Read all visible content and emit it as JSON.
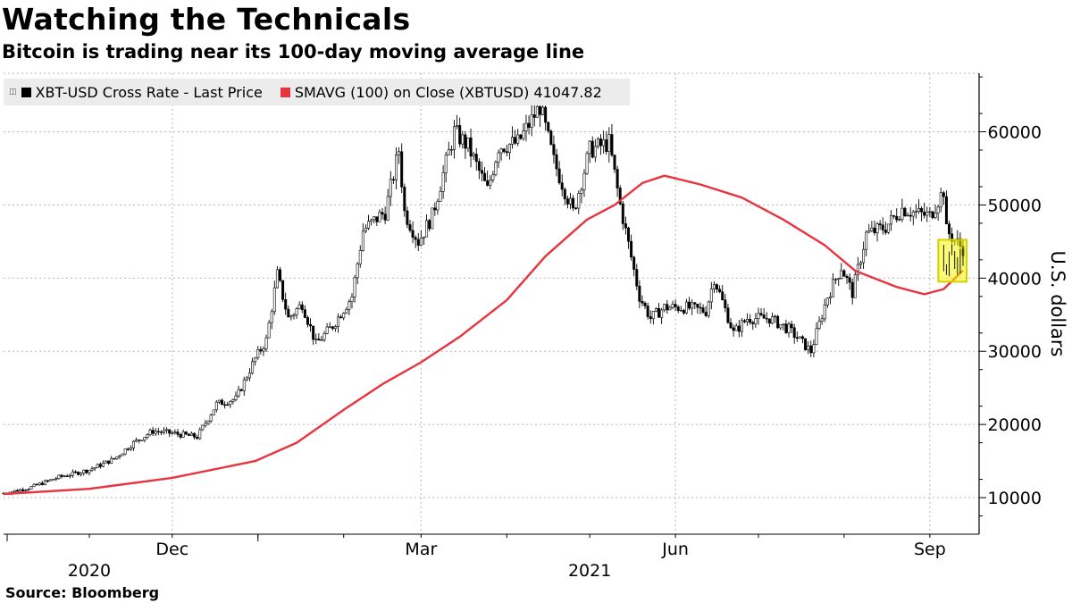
{
  "header": {
    "title": "Watching the Technicals",
    "subtitle": "Bitcoin is trading near its 100-day moving average line"
  },
  "footer": {
    "source": "Source: Bloomberg"
  },
  "legend": {
    "series1_label": "XBT-USD Cross Rate - Last Price",
    "series2_label": "SMAVG (100)  on Close (XBTUSD) 41047.82"
  },
  "colors": {
    "price": "#000000",
    "sma": "#e8343e",
    "highlight_fill": "#f5f500",
    "highlight_border": "#d4d000",
    "grid": "#b8b8b8"
  },
  "chart_data": {
    "type": "line",
    "title": "Watching the Technicals",
    "subtitle": "Bitcoin is trading near its 100-day moving average line",
    "ylabel": "U.S. dollars",
    "xlabel": "",
    "ylim": [
      5000,
      68000
    ],
    "y_ticks": [
      10000,
      20000,
      30000,
      40000,
      50000,
      60000
    ],
    "y_tick_labels": [
      "10000",
      "20000",
      "30000",
      "40000",
      "50000",
      "60000"
    ],
    "x_range": [
      "2020-10-01",
      "2021-09-13"
    ],
    "x_ticks": [
      {
        "date": "2020-12-01",
        "label": "Dec"
      },
      {
        "date": "2021-03-01",
        "label": "Mar"
      },
      {
        "date": "2021-06-01",
        "label": "Jun"
      },
      {
        "date": "2021-09-01",
        "label": "Sep"
      }
    ],
    "year_labels": [
      {
        "date": "2020-11-01",
        "label": "2020"
      },
      {
        "date": "2021-05-01",
        "label": "2021"
      }
    ],
    "legend_position": "top-left",
    "highlight": {
      "from": "2021-09-06",
      "to": "2021-09-13",
      "y_from": 40000,
      "y_to": 45000
    },
    "series": [
      {
        "name": "XBT-USD Cross Rate - Last Price",
        "style": "candlestick",
        "points": [
          [
            "2020-10-01",
            10600
          ],
          [
            "2020-10-10",
            11300
          ],
          [
            "2020-10-21",
            12800
          ],
          [
            "2020-11-01",
            13800
          ],
          [
            "2020-11-10",
            15300
          ],
          [
            "2020-11-17",
            17500
          ],
          [
            "2020-11-24",
            19100
          ],
          [
            "2020-12-01",
            18800
          ],
          [
            "2020-12-10",
            18300
          ],
          [
            "2020-12-17",
            22800
          ],
          [
            "2020-12-24",
            23500
          ],
          [
            "2020-12-31",
            29000
          ],
          [
            "2021-01-04",
            31500
          ],
          [
            "2021-01-08",
            40500
          ],
          [
            "2021-01-12",
            34500
          ],
          [
            "2021-01-17",
            36500
          ],
          [
            "2021-01-22",
            31000
          ],
          [
            "2021-01-28",
            33500
          ],
          [
            "2021-02-04",
            37500
          ],
          [
            "2021-02-08",
            46500
          ],
          [
            "2021-02-14",
            48500
          ],
          [
            "2021-02-16",
            49000
          ],
          [
            "2021-02-21",
            57500
          ],
          [
            "2021-02-23",
            49000
          ],
          [
            "2021-02-28",
            45000
          ],
          [
            "2021-03-05",
            48500
          ],
          [
            "2021-03-13",
            60000
          ],
          [
            "2021-03-18",
            58000
          ],
          [
            "2021-03-25",
            52000
          ],
          [
            "2021-03-29",
            58000
          ],
          [
            "2021-04-05",
            58500
          ],
          [
            "2021-04-13",
            63500
          ],
          [
            "2021-04-18",
            56000
          ],
          [
            "2021-04-25",
            49000
          ],
          [
            "2021-05-01",
            57500
          ],
          [
            "2021-05-08",
            58500
          ],
          [
            "2021-05-12",
            50000
          ],
          [
            "2021-05-19",
            37500
          ],
          [
            "2021-05-23",
            34500
          ],
          [
            "2021-05-28",
            36000
          ],
          [
            "2021-06-05",
            36000
          ],
          [
            "2021-06-12",
            35500
          ],
          [
            "2021-06-15",
            40000
          ],
          [
            "2021-06-22",
            32500
          ],
          [
            "2021-06-27",
            34500
          ],
          [
            "2021-07-05",
            34500
          ],
          [
            "2021-07-12",
            33000
          ],
          [
            "2021-07-20",
            30000
          ],
          [
            "2021-07-26",
            37500
          ],
          [
            "2021-07-31",
            41500
          ],
          [
            "2021-08-04",
            38000
          ],
          [
            "2021-08-09",
            46000
          ],
          [
            "2021-08-16",
            47000
          ],
          [
            "2021-08-22",
            49500
          ],
          [
            "2021-08-28",
            48800
          ],
          [
            "2021-09-01",
            48500
          ],
          [
            "2021-09-06",
            52000
          ],
          [
            "2021-09-07",
            46500
          ],
          [
            "2021-09-13",
            44000
          ]
        ]
      },
      {
        "name": "SMAVG (100)  on Close (XBTUSD)",
        "style": "line",
        "last_value": 41047.82,
        "points": [
          [
            "2020-10-01",
            10500
          ],
          [
            "2020-11-01",
            11200
          ],
          [
            "2020-12-01",
            12700
          ],
          [
            "2020-12-31",
            15000
          ],
          [
            "2021-01-15",
            17500
          ],
          [
            "2021-02-01",
            22000
          ],
          [
            "2021-02-15",
            25500
          ],
          [
            "2021-03-01",
            28500
          ],
          [
            "2021-03-15",
            32000
          ],
          [
            "2021-04-01",
            37000
          ],
          [
            "2021-04-15",
            43000
          ],
          [
            "2021-04-30",
            48000
          ],
          [
            "2021-05-10",
            50000
          ],
          [
            "2021-05-20",
            53000
          ],
          [
            "2021-05-28",
            54000
          ],
          [
            "2021-06-10",
            52800
          ],
          [
            "2021-06-25",
            51000
          ],
          [
            "2021-07-10",
            48000
          ],
          [
            "2021-07-25",
            44500
          ],
          [
            "2021-08-05",
            41000
          ],
          [
            "2021-08-20",
            38800
          ],
          [
            "2021-08-30",
            37800
          ],
          [
            "2021-09-06",
            38500
          ],
          [
            "2021-09-13",
            41048
          ]
        ]
      }
    ]
  }
}
